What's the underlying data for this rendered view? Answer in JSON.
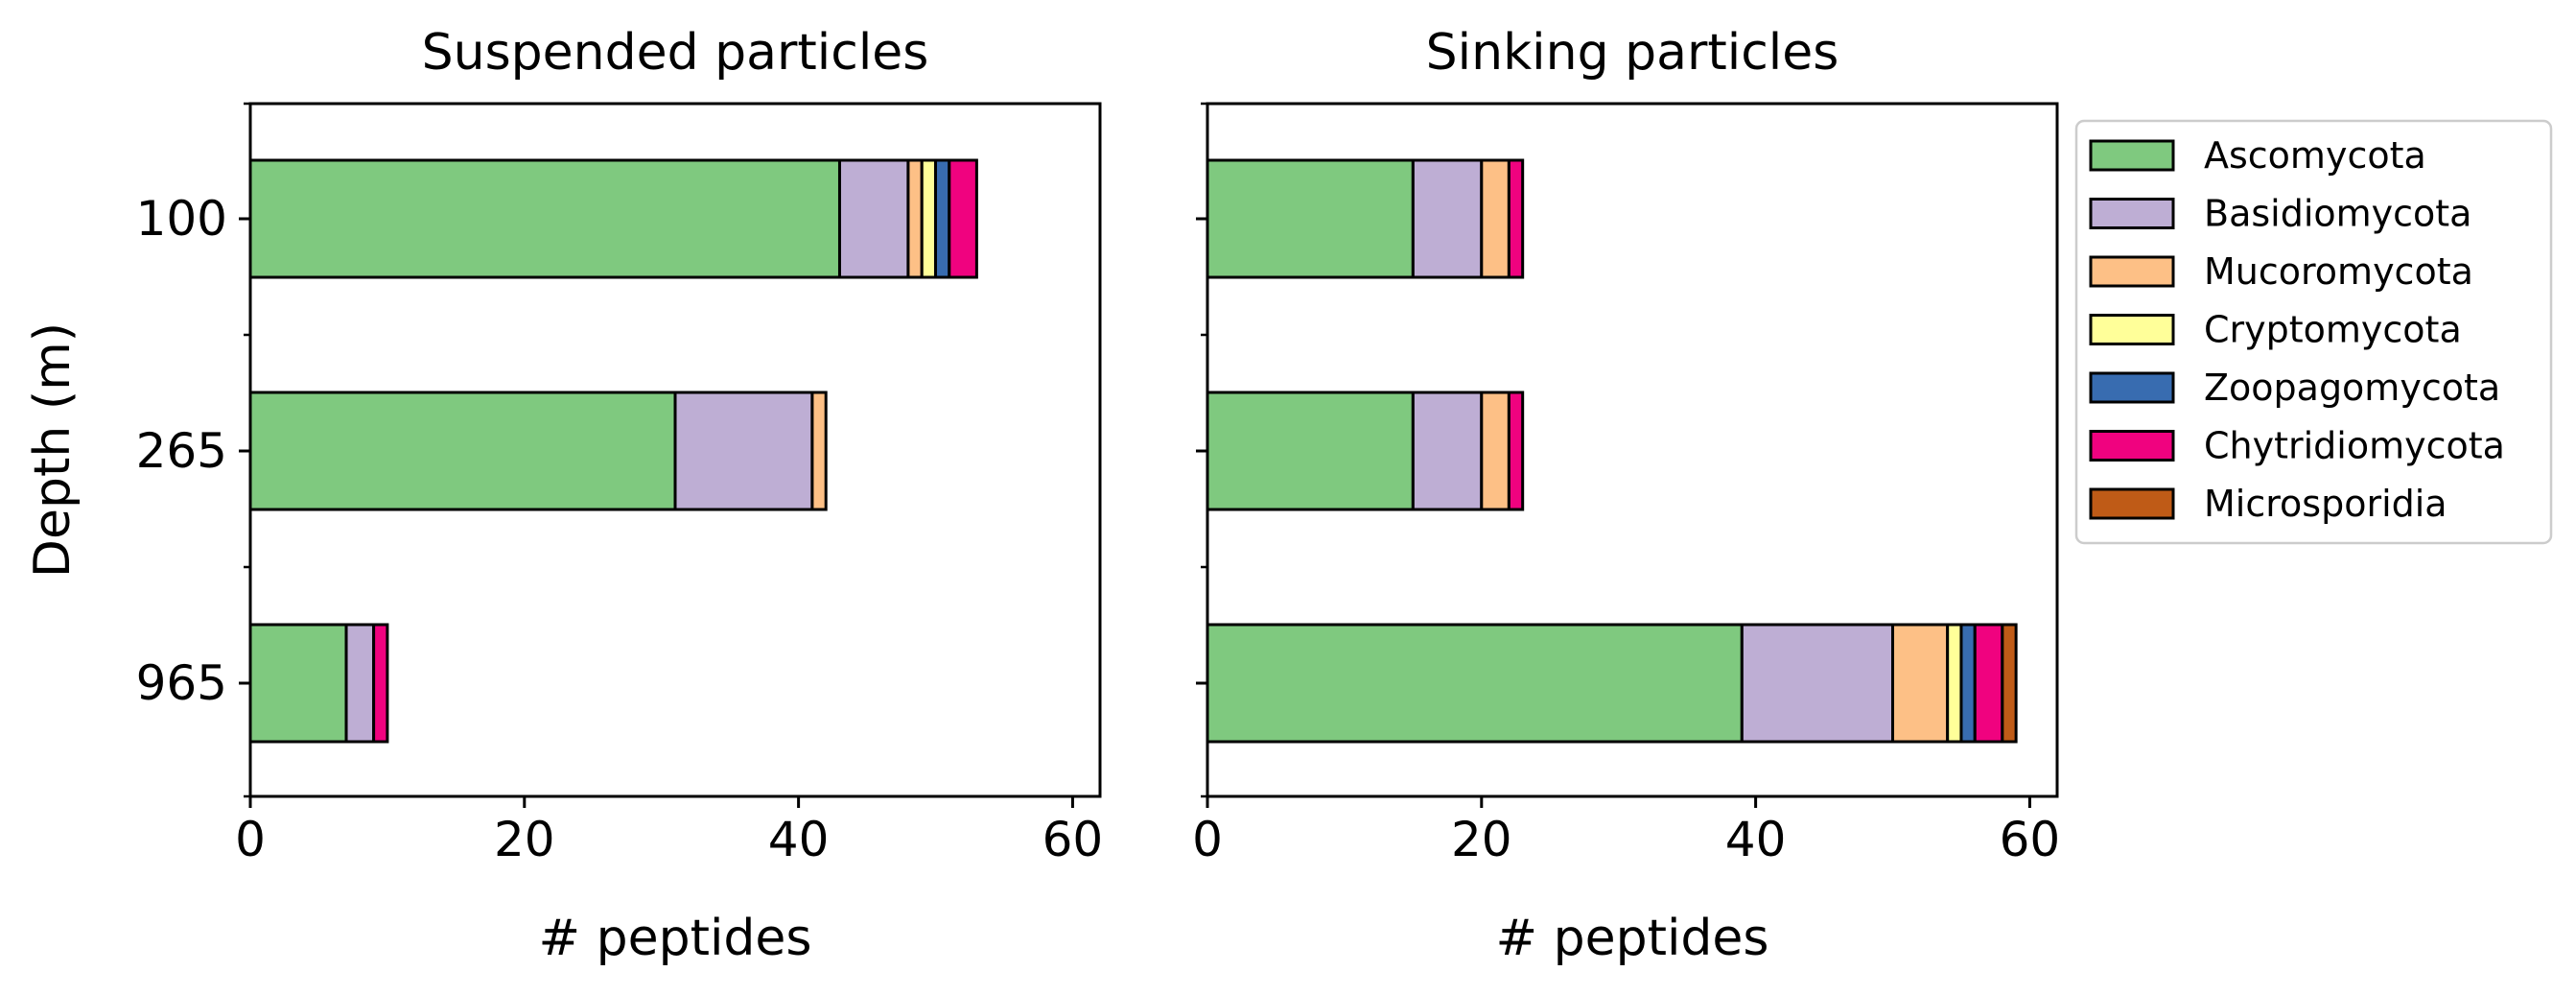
{
  "colors": {
    "Ascomycota": "#7fc97f",
    "Basidiomycota": "#beaed4",
    "Mucoromycota": "#fdc086",
    "Cryptomycota": "#ffff99",
    "Zoopagomycota": "#386cb0",
    "Chytridiomycota": "#f0027f",
    "Microsporidia": "#bf5b17"
  },
  "chart_data": [
    {
      "type": "bar",
      "orientation": "horizontal",
      "stacked": true,
      "title": "Suspended particles",
      "xlabel": "# peptides",
      "ylabel": "Depth (m)",
      "categories": [
        "100",
        "265",
        "965"
      ],
      "xlim": [
        0,
        62
      ],
      "xticks": [
        0,
        20,
        40,
        60
      ],
      "series": [
        {
          "name": "Ascomycota",
          "values": [
            43,
            31,
            7
          ]
        },
        {
          "name": "Basidiomycota",
          "values": [
            5,
            10,
            2
          ]
        },
        {
          "name": "Mucoromycota",
          "values": [
            1,
            1,
            0
          ]
        },
        {
          "name": "Cryptomycota",
          "values": [
            1,
            0,
            0
          ]
        },
        {
          "name": "Zoopagomycota",
          "values": [
            1,
            0,
            0
          ]
        },
        {
          "name": "Chytridiomycota",
          "values": [
            2,
            0,
            1
          ]
        },
        {
          "name": "Microsporidia",
          "values": [
            0,
            0,
            0
          ]
        }
      ]
    },
    {
      "type": "bar",
      "orientation": "horizontal",
      "stacked": true,
      "title": "Sinking particles",
      "xlabel": "# peptides",
      "ylabel": "",
      "categories": [
        "100",
        "265",
        "965"
      ],
      "xlim": [
        0,
        62
      ],
      "xticks": [
        0,
        20,
        40,
        60
      ],
      "series": [
        {
          "name": "Ascomycota",
          "values": [
            15,
            15,
            39
          ]
        },
        {
          "name": "Basidiomycota",
          "values": [
            5,
            5,
            11
          ]
        },
        {
          "name": "Mucoromycota",
          "values": [
            2,
            2,
            4
          ]
        },
        {
          "name": "Cryptomycota",
          "values": [
            0,
            0,
            1
          ]
        },
        {
          "name": "Zoopagomycota",
          "values": [
            0,
            0,
            1
          ]
        },
        {
          "name": "Chytridiomycota",
          "values": [
            1,
            1,
            2
          ]
        },
        {
          "name": "Microsporidia",
          "values": [
            0,
            0,
            1
          ]
        }
      ]
    }
  ],
  "legend": {
    "placement": "outside-right",
    "items": [
      "Ascomycota",
      "Basidiomycota",
      "Mucoromycota",
      "Cryptomycota",
      "Zoopagomycota",
      "Chytridiomycota",
      "Microsporidia"
    ]
  }
}
